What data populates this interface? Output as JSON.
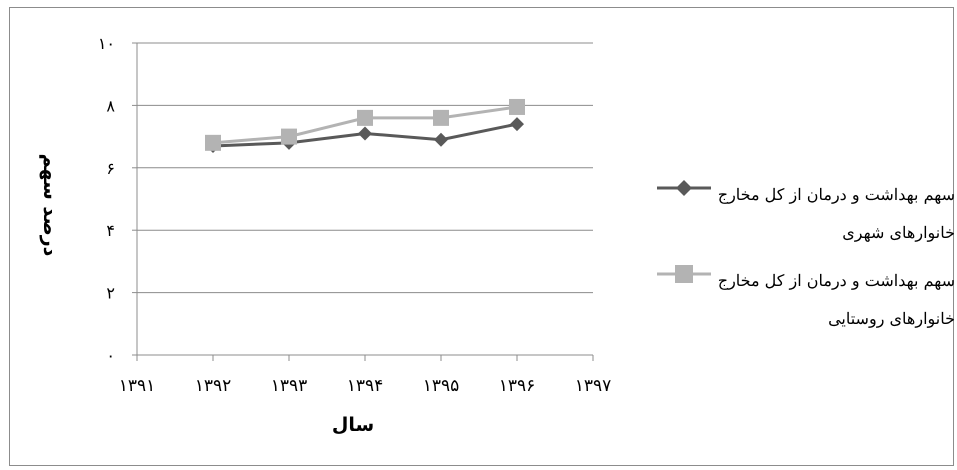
{
  "chart_data": {
    "type": "line",
    "x": [
      "۱۳۹۱",
      "۱۳۹۲",
      "۱۳۹۳",
      "۱۳۹۴",
      "۱۳۹۵",
      "۱۳۹۶",
      "۱۳۹۷"
    ],
    "y_ticks": [
      "۰",
      "۲",
      "۴",
      "۶",
      "۸",
      "۱۰"
    ],
    "y_tick_values": [
      0,
      2,
      4,
      6,
      8,
      10
    ],
    "ylim": [
      0,
      10
    ],
    "xlabel": "سال",
    "ylabel": "درصد سهم",
    "grid": true,
    "legend_position": "right",
    "series": [
      {
        "name": "سهم بهداشت و درمان از کل مخارج خانوارهای شهری",
        "color": "#595959",
        "marker": "diamond",
        "values": [
          null,
          6.7,
          6.8,
          7.1,
          6.9,
          7.4,
          null
        ]
      },
      {
        "name": "سهم بهداشت و درمان از کل مخارج خانوارهای روستایی",
        "color": "#b3b3b3",
        "marker": "square",
        "values": [
          null,
          6.8,
          7.0,
          7.6,
          7.6,
          7.95,
          null
        ]
      }
    ]
  }
}
